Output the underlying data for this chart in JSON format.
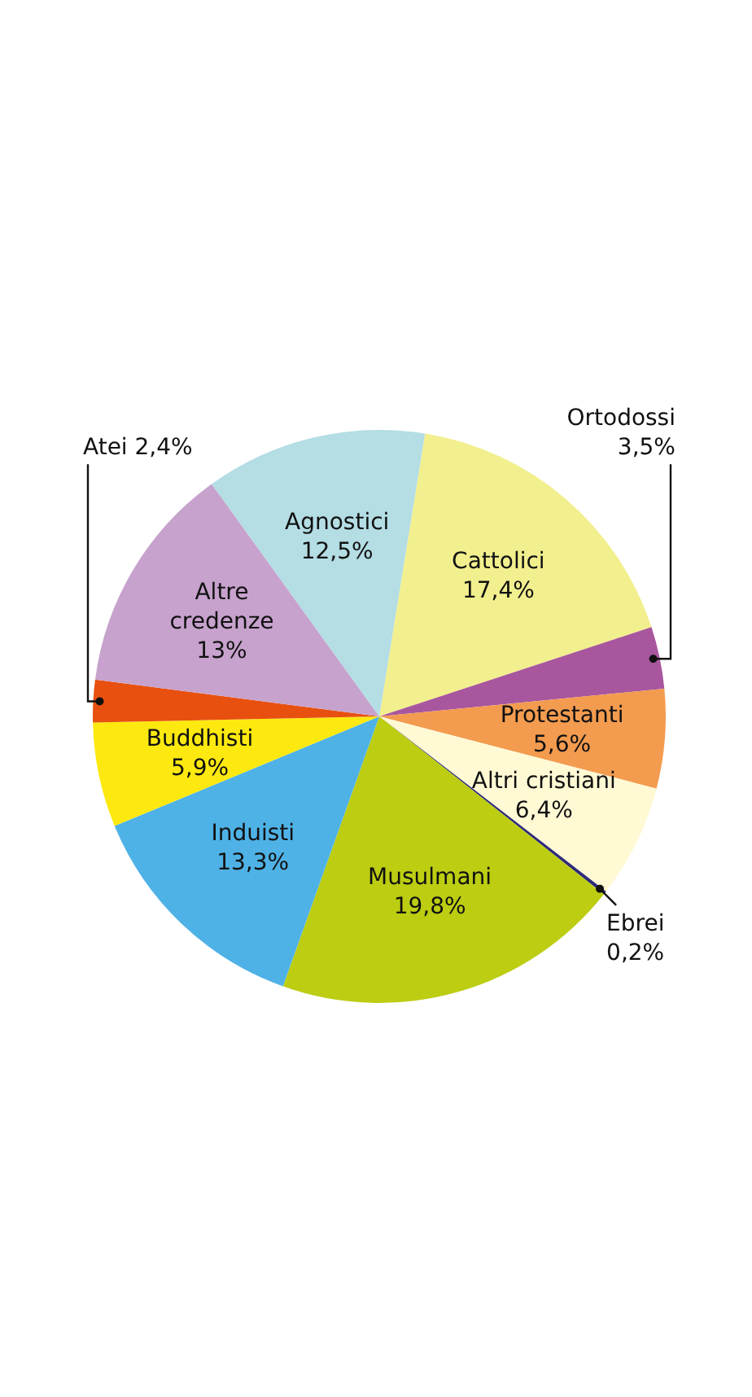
{
  "chart_data": {
    "type": "pie",
    "categories": [
      "Cattolici",
      "Ortodossi",
      "Protestanti",
      "Altri cristiani",
      "Ebrei",
      "Musulmani",
      "Induisti",
      "Buddhisti",
      "Atei",
      "Altre credenze",
      "Agnostici"
    ],
    "values": [
      17.4,
      3.5,
      5.6,
      6.4,
      0.2,
      19.8,
      13.3,
      5.9,
      2.4,
      13,
      12.5
    ],
    "value_labels": [
      "17,4%",
      "3,5%",
      "5,6%",
      "6,4%",
      "0,2%",
      "19,8%",
      "13,3%",
      "5,9%",
      "2,4%",
      "13%",
      "12,5%"
    ],
    "colors": [
      "#f2ef8e",
      "#a8579e",
      "#f39b4f",
      "#fff9d4",
      "#2e2a7a",
      "#bccd12",
      "#4fb2e6",
      "#fde910",
      "#e8500f",
      "#c7a2cd",
      "#b4dde4"
    ],
    "legend": false
  }
}
